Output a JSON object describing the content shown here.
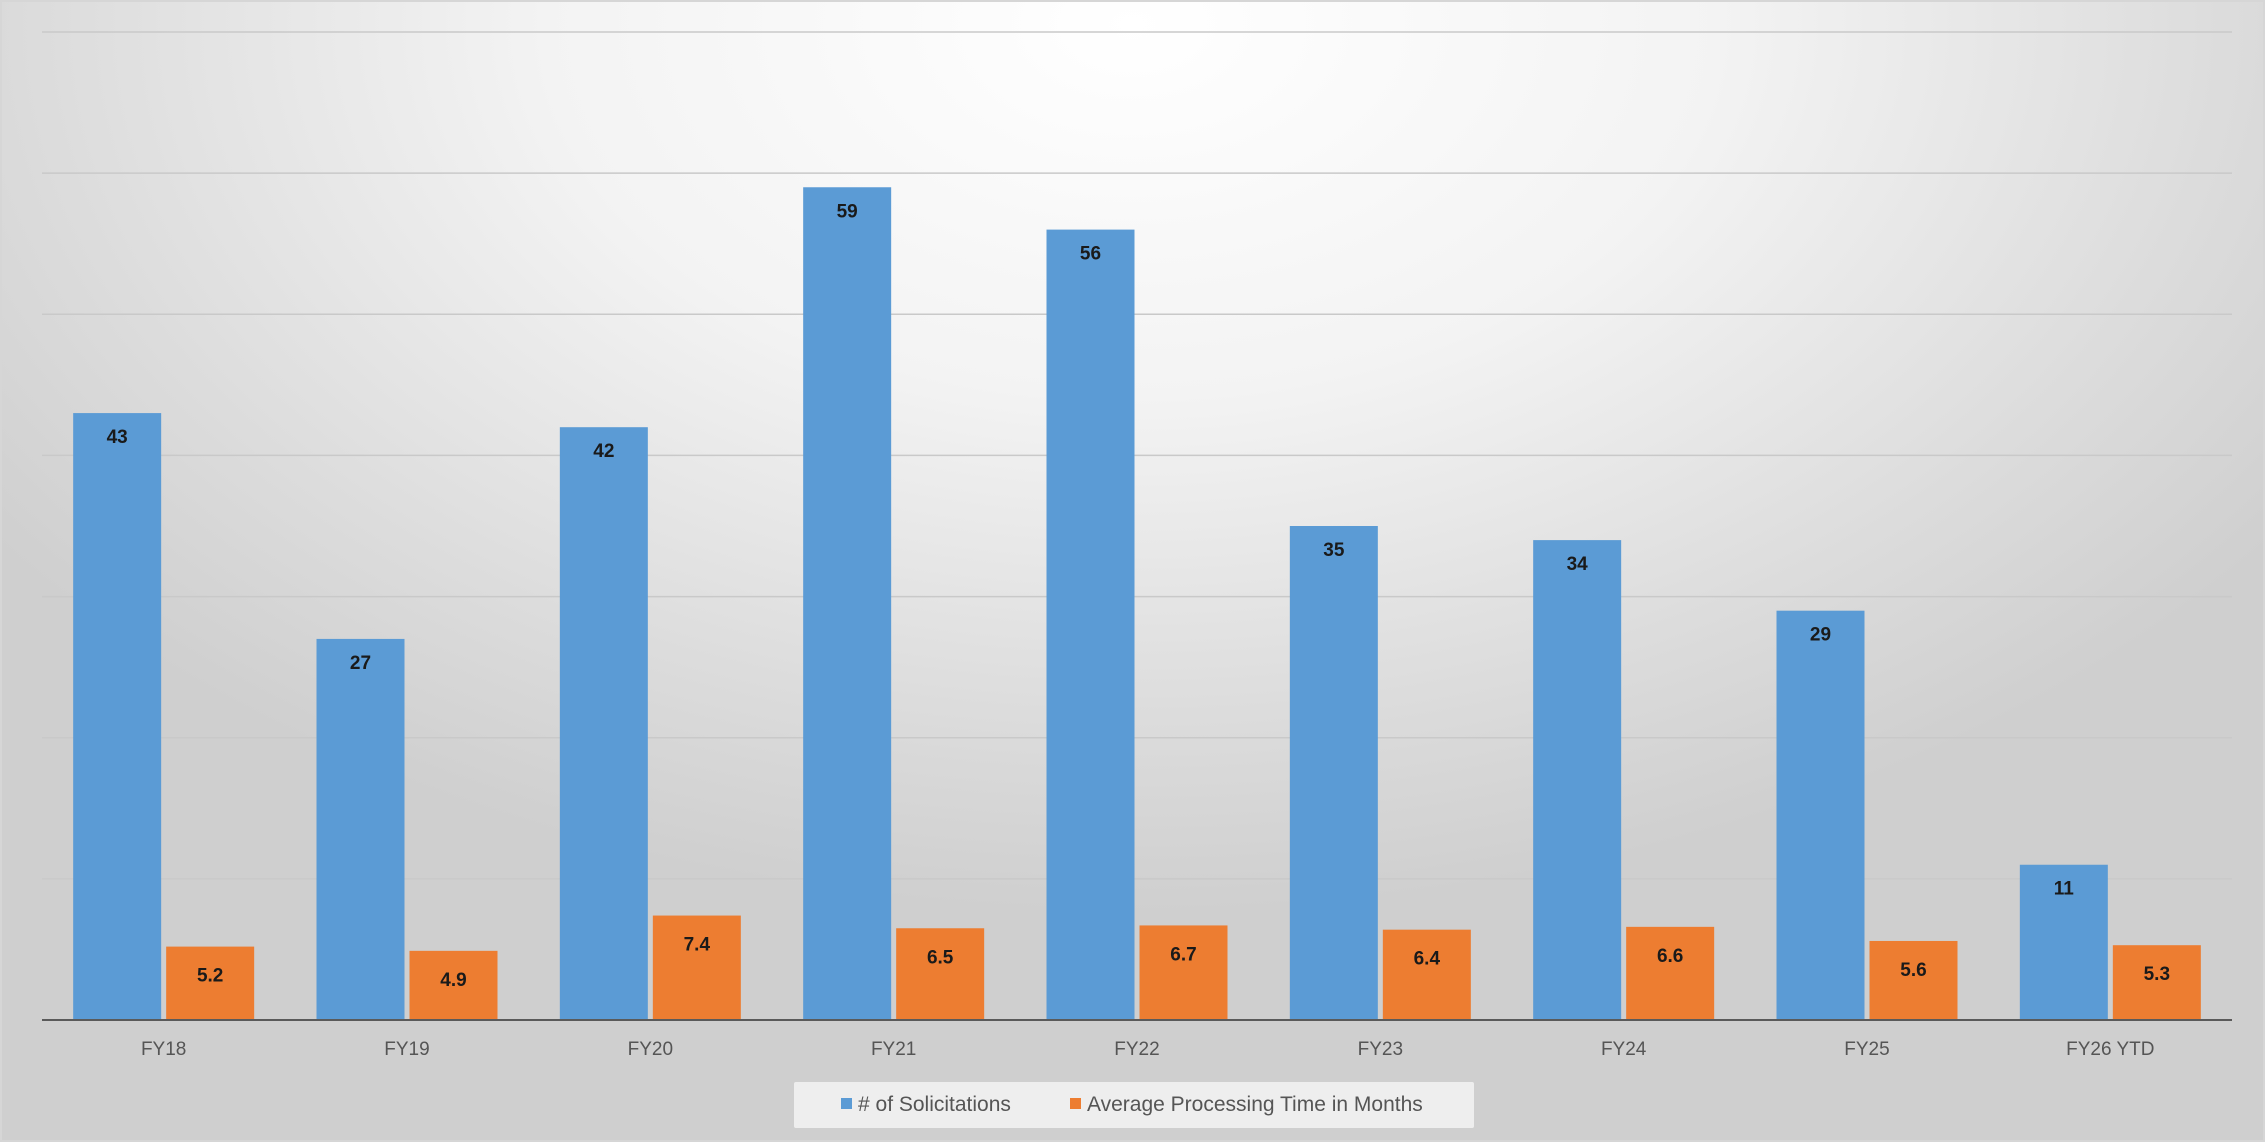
{
  "chart_data": {
    "type": "bar",
    "title": "",
    "xlabel": "",
    "ylabel": "",
    "categories": [
      "FY18",
      "FY19",
      "FY20",
      "FY21",
      "FY22",
      "FY23",
      "FY24",
      "FY25",
      "FY26 YTD"
    ],
    "series": [
      {
        "name": "# of Solicitations",
        "color": "#5b9bd5",
        "values": [
          43,
          27,
          42,
          59,
          56,
          35,
          34,
          29,
          11
        ]
      },
      {
        "name": "Average Processing Time in Months",
        "color": "#ed7d31",
        "values": [
          5.2,
          4.9,
          7.4,
          6.5,
          6.7,
          6.4,
          6.6,
          5.6,
          5.3
        ]
      }
    ],
    "ylim": [
      0,
      70
    ],
    "y_tick_values": [
      0,
      10,
      20,
      30,
      40,
      50,
      60,
      70
    ],
    "y_tick_labels_visible": false,
    "grid": true,
    "legend_position": "bottom"
  }
}
